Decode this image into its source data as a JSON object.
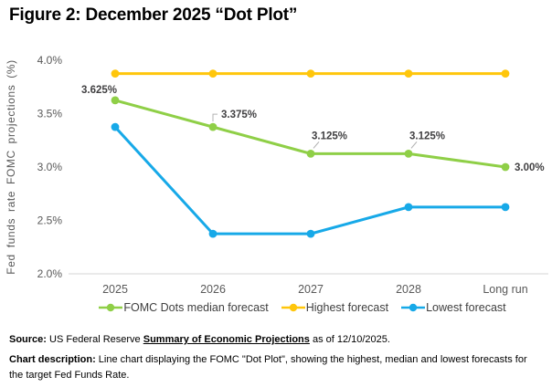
{
  "title": "Figure 2: December 2025 “Dot Plot”",
  "chart_data": {
    "type": "line",
    "title": "Figure 2: December 2025 “Dot Plot”",
    "categories": [
      "2025",
      "2026",
      "2027",
      "2028",
      "Long run"
    ],
    "series": [
      {
        "name": "FOMC Dots median forecast",
        "color": "#8FCF47",
        "values": [
          3.625,
          3.375,
          3.125,
          3.125,
          3.0
        ]
      },
      {
        "name": "Highest forecast",
        "color": "#FFC60B",
        "values": [
          3.875,
          3.875,
          3.875,
          3.875,
          3.875
        ]
      },
      {
        "name": "Lowest forecast",
        "color": "#17A9E8",
        "values": [
          3.375,
          2.375,
          2.375,
          2.625,
          2.625
        ]
      }
    ],
    "xlabel": "",
    "ylabel": "Fed funds rate FOMC projections (%)",
    "ylim": [
      2.0,
      4.0
    ],
    "yticks": [
      4.0,
      3.5,
      3.0,
      2.5,
      2.0
    ],
    "ytick_labels": [
      "4.0%",
      "3.5%",
      "3.0%",
      "2.5%",
      "2.0%"
    ],
    "grid": "baseline-only",
    "legend_position": "bottom",
    "point_labels": [
      {
        "series": 0,
        "index": 0,
        "text": "3.625%",
        "placement": "above-left"
      },
      {
        "series": 0,
        "index": 1,
        "text": "3.375%",
        "placement": "elbow-right"
      },
      {
        "series": 0,
        "index": 2,
        "text": "3.125%",
        "placement": "diag-above"
      },
      {
        "series": 0,
        "index": 3,
        "text": "3.125%",
        "placement": "diag-above"
      },
      {
        "series": 0,
        "index": 4,
        "text": "3.00%",
        "placement": "right"
      }
    ]
  },
  "footer": {
    "source_label": "Source:",
    "source_text": " US Federal Reserve ",
    "source_link": "Summary of Economic Projections",
    "source_suffix": " as of 12/10/2025.",
    "description_label": "Chart description:",
    "description_text": " Line chart displaying the FOMC \"Dot Plot\", showing the highest, median and lowest forecasts for the target Fed Funds Rate."
  }
}
